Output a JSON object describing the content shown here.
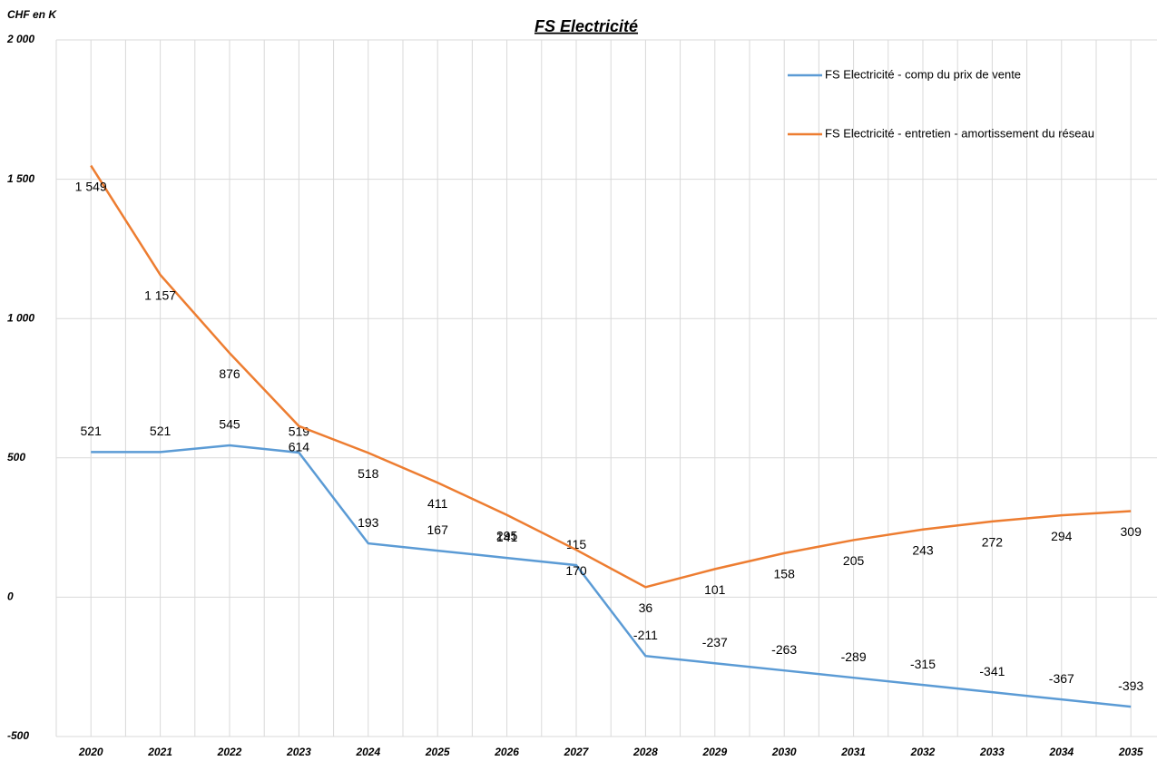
{
  "chart_data": {
    "type": "line",
    "title": "FS Electricité",
    "y_label": "CHF en K",
    "categories": [
      "2020",
      "2021",
      "2022",
      "2023",
      "2024",
      "2025",
      "2026",
      "2027",
      "2028",
      "2029",
      "2030",
      "2031",
      "2032",
      "2033",
      "2034",
      "2035"
    ],
    "series": [
      {
        "name": "FS Electricité - comp du prix de vente",
        "color": "#5b9bd5",
        "values": [
          521,
          521,
          545,
          519,
          193,
          167,
          141,
          115,
          -211,
          -237,
          -263,
          -289,
          -315,
          -341,
          -367,
          -393
        ]
      },
      {
        "name": "FS Electricité - entretien - amortissement du réseau",
        "color": "#ed7d31",
        "values": [
          1549,
          1157,
          876,
          614,
          518,
          411,
          295,
          170,
          36,
          101,
          158,
          205,
          243,
          272,
          294,
          309
        ],
        "value_labels": [
          "1 549",
          "1 157",
          "876",
          "614",
          "518",
          "411",
          "295",
          "170",
          "36",
          "101",
          "158",
          "205",
          "243",
          "272",
          "294",
          "309"
        ]
      }
    ],
    "ylim": [
      -500,
      2000
    ],
    "yticks": [
      -500,
      0,
      500,
      {
        "value": 1000,
        "label": "1 000"
      },
      {
        "value": 1500,
        "label": "1 500"
      },
      {
        "value": 2000,
        "label": "2 000"
      }
    ],
    "grid": true,
    "legend": "top-right"
  }
}
